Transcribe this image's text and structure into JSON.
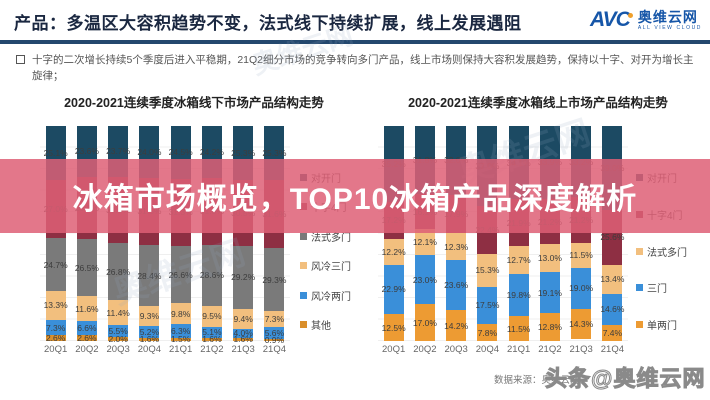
{
  "header": {
    "title": "产品：多温区大容积趋势不变，法式线下持续扩展，线上发展遇阻",
    "logo": {
      "avc": "AVC",
      "brand": "奥维云网",
      "tagline": "ALL VIEW CLOUD"
    }
  },
  "bullet": {
    "text": "十字的二次增长持续5个季度后进入平稳期，21Q2细分市场的竞争转向多门产品，线上市场则保持大容积发展趋势，保持以十字、对开为增长主旋律；"
  },
  "overlay": {
    "text": "冰箱市场概览，TOP10冰箱产品深度解析",
    "color": "#de5f76"
  },
  "watermark_text": "奥维云网",
  "footer": {
    "source": "数据来源：奥维云网",
    "watermark": "头条@奥维云网"
  },
  "chart_data": [
    {
      "type": "bar",
      "stacked": true,
      "title": "2020-2021连续季度冰箱线下市场产品结构走势",
      "unit": "%",
      "ylim": [
        0,
        100
      ],
      "grid": true,
      "legend_position": "right",
      "categories": [
        "20Q1",
        "20Q2",
        "20Q3",
        "20Q4",
        "21Q1",
        "21Q2",
        "21Q3",
        "21Q4"
      ],
      "series": [
        {
          "name": "对开门",
          "color": "#1c4a63",
          "values": [
            25.1,
            23.6,
            23.7,
            24.0,
            24.5,
            24.2,
            25.3,
            25.3
          ]
        },
        {
          "name": "十字4门",
          "color": "#8e2f43",
          "values": [
            27.0,
            29.1,
            30.6,
            31.5,
            31.3,
            31.0,
            30.5,
            31.6
          ]
        },
        {
          "name": "法式多门",
          "color": "#7a7a7a",
          "values": [
            24.7,
            26.5,
            26.8,
            28.4,
            26.6,
            28.6,
            29.2,
            29.3
          ]
        },
        {
          "name": "风冷三门",
          "color": "#f2bf7e",
          "values": [
            13.3,
            11.6,
            11.4,
            9.3,
            9.8,
            9.5,
            9.4,
            7.3
          ]
        },
        {
          "name": "风冷两门",
          "color": "#3a8fd9",
          "values": [
            7.3,
            6.6,
            5.5,
            5.2,
            6.3,
            5.1,
            4.0,
            5.6
          ]
        },
        {
          "name": "其他",
          "color": "#da8f2b",
          "values": [
            2.6,
            2.6,
            2.0,
            1.6,
            1.5,
            1.6,
            1.6,
            0.9
          ]
        }
      ]
    },
    {
      "type": "bar",
      "stacked": true,
      "title": "2020-2021连续季度冰箱线上市场产品结构走势",
      "unit": "%",
      "ylim": [
        0,
        100
      ],
      "grid": true,
      "legend_position": "right",
      "categories": [
        "20Q1",
        "20Q2",
        "20Q3",
        "20Q4",
        "21Q1",
        "21Q2",
        "21Q3",
        "21Q4"
      ],
      "series": [
        {
          "name": "对开门",
          "color": "#1c4a63",
          "values": [
            35.2,
            31.8,
            32.0,
            37.0,
            34.1,
            33.9,
            33.2,
            39.0
          ]
        },
        {
          "name": "十字4门",
          "color": "#8e2f43",
          "values": [
            17.2,
            16.1,
            17.9,
            22.4,
            21.9,
            21.2,
            21.2,
            25.6
          ]
        },
        {
          "name": "法式多门",
          "color": "#f2bf7e",
          "values": [
            12.2,
            12.1,
            12.3,
            15.3,
            12.7,
            13.0,
            11.5,
            13.4
          ]
        },
        {
          "name": "三门",
          "color": "#3a8fd9",
          "values": [
            22.9,
            23.0,
            23.6,
            17.5,
            19.8,
            19.1,
            19.0,
            14.6
          ]
        },
        {
          "name": "单两门",
          "color": "#ed9b33",
          "values": [
            12.5,
            17.0,
            14.2,
            7.8,
            11.5,
            12.8,
            14.3,
            7.4
          ]
        }
      ]
    }
  ]
}
